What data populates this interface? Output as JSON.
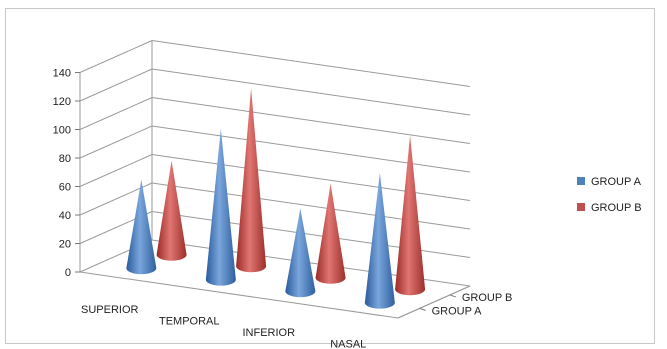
{
  "chart_data": {
    "type": "bar",
    "style": "3d-cone",
    "categories": [
      "SUPERIOR",
      "TEMPORAL",
      "INFERIOR",
      "NASAL"
    ],
    "depth_labels": [
      "GROUP B",
      "GROUP A"
    ],
    "series": [
      {
        "name": "GROUP A",
        "values": [
          62,
          106,
          58,
          91
        ],
        "color": "#4f81bd"
      },
      {
        "name": "GROUP B",
        "values": [
          66,
          125,
          66,
          108
        ],
        "color": "#c0504d"
      }
    ],
    "y_ticks": [
      "0",
      "20",
      "40",
      "60",
      "80",
      "100",
      "120",
      "140"
    ],
    "ylim": [
      0,
      140
    ],
    "grid": true,
    "legend": "right",
    "title": "",
    "xlabel": "",
    "ylabel": ""
  }
}
